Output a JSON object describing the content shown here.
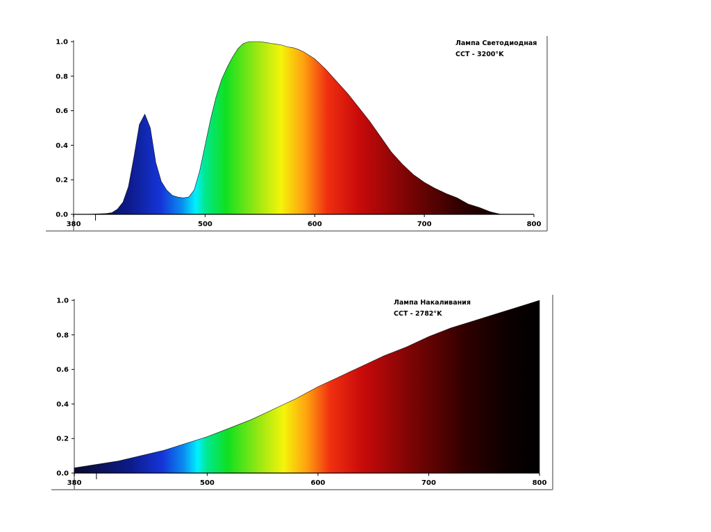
{
  "colors": {
    "frame": "#7a7a7a",
    "axis_text": "#000000",
    "background": "#ffffff"
  },
  "chart_data": [
    {
      "type": "area",
      "title": "",
      "annotation": [
        "Лампа Светодиодная",
        "CCT - 3200°K"
      ],
      "xlabel": "",
      "ylabel": "",
      "xlim": [
        380,
        800
      ],
      "ylim": [
        0,
        1.0
      ],
      "x_ticks": [
        "380",
        "500",
        "600",
        "700",
        "800"
      ],
      "y_ticks": [
        "0.0",
        "0.2",
        "0.4",
        "0.6",
        "0.8",
        "1.0"
      ],
      "fill": "visible-spectrum gradient",
      "series": [
        {
          "x": [
            380,
            390,
            400,
            410,
            415,
            420,
            425,
            430,
            435,
            440,
            445,
            450,
            455,
            460,
            465,
            470,
            475,
            480,
            485,
            490,
            495,
            500,
            505,
            510,
            515,
            520,
            525,
            530,
            535,
            540,
            545,
            550,
            555,
            560,
            565,
            570,
            575,
            580,
            585,
            590,
            600,
            610,
            620,
            630,
            640,
            650,
            660,
            670,
            680,
            690,
            700,
            710,
            720,
            730,
            740,
            750,
            760,
            770,
            775,
            780,
            790,
            800
          ],
          "values": [
            0,
            0,
            0.002,
            0.005,
            0.01,
            0.03,
            0.07,
            0.16,
            0.33,
            0.52,
            0.58,
            0.5,
            0.3,
            0.19,
            0.14,
            0.11,
            0.1,
            0.095,
            0.1,
            0.14,
            0.25,
            0.4,
            0.55,
            0.68,
            0.78,
            0.85,
            0.91,
            0.96,
            0.99,
            1.0,
            1.0,
            1.0,
            0.995,
            0.99,
            0.985,
            0.98,
            0.97,
            0.965,
            0.955,
            0.94,
            0.9,
            0.84,
            0.77,
            0.7,
            0.62,
            0.54,
            0.45,
            0.36,
            0.29,
            0.23,
            0.185,
            0.15,
            0.12,
            0.095,
            0.06,
            0.04,
            0.015,
            0,
            0,
            0,
            0,
            0
          ]
        }
      ]
    },
    {
      "type": "area",
      "title": "",
      "annotation": [
        "Лампа Накаливания",
        "CCT - 2782°K"
      ],
      "xlabel": "",
      "ylabel": "",
      "xlim": [
        380,
        800
      ],
      "ylim": [
        0,
        1.0
      ],
      "x_ticks": [
        "380",
        "500",
        "600",
        "700",
        "800"
      ],
      "y_ticks": [
        "0.0",
        "0.2",
        "0.4",
        "0.6",
        "0.8",
        "1.0"
      ],
      "fill": "visible-spectrum gradient",
      "series": [
        {
          "x": [
            380,
            400,
            420,
            440,
            460,
            480,
            500,
            520,
            540,
            560,
            580,
            600,
            620,
            640,
            660,
            680,
            700,
            720,
            740,
            760,
            780,
            800
          ],
          "values": [
            0.03,
            0.05,
            0.07,
            0.1,
            0.13,
            0.17,
            0.21,
            0.26,
            0.31,
            0.37,
            0.43,
            0.5,
            0.56,
            0.62,
            0.68,
            0.73,
            0.79,
            0.84,
            0.88,
            0.92,
            0.96,
            1.0
          ]
        }
      ]
    }
  ]
}
